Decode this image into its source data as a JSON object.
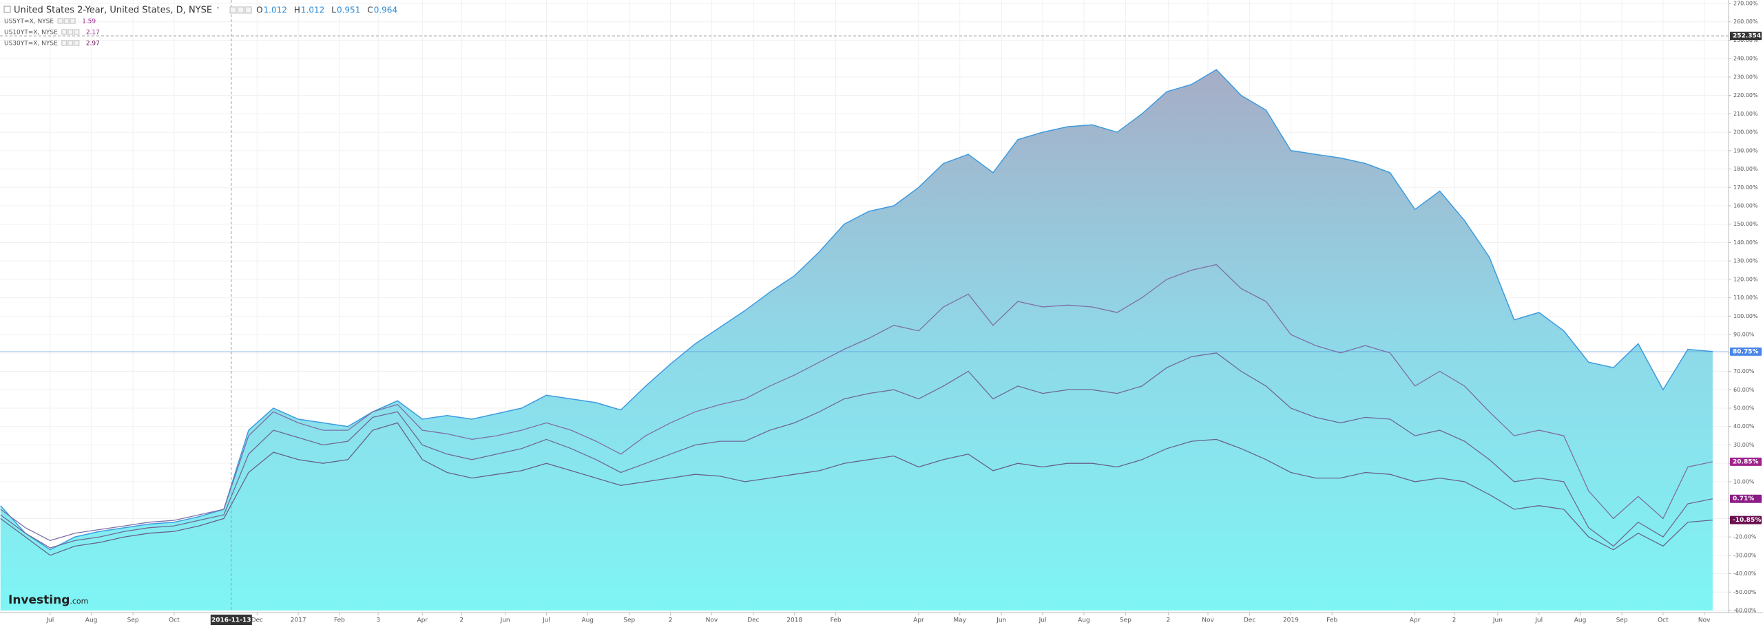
{
  "chart_data": {
    "type": "line-area",
    "title": "United States 2-Year, United States, D, NYSE",
    "ohlc": [
      {
        "key": "O",
        "value": 1.012
      },
      {
        "key": "H",
        "value": 1.012
      },
      {
        "key": "L",
        "value": 0.951
      },
      {
        "key": "C",
        "value": 0.964
      }
    ],
    "watermark": [
      "Investing",
      ".com"
    ],
    "x": [
      2016.4,
      2016.45,
      2016.5,
      2016.55,
      2016.6,
      2016.65,
      2016.7,
      2016.75,
      2016.8,
      2016.85,
      2016.9,
      2016.95,
      2017.0,
      2017.05,
      2017.1,
      2017.15,
      2017.2,
      2017.25,
      2017.3,
      2017.35,
      2017.4,
      2017.45,
      2017.5,
      2017.55,
      2017.6,
      2017.65,
      2017.7,
      2017.75,
      2017.8,
      2017.85,
      2017.9,
      2017.95,
      2018.0,
      2018.05,
      2018.1,
      2018.15,
      2018.2,
      2018.25,
      2018.3,
      2018.35,
      2018.4,
      2018.45,
      2018.5,
      2018.55,
      2018.6,
      2018.65,
      2018.7,
      2018.75,
      2018.8,
      2018.85,
      2018.9,
      2018.95,
      2019.0,
      2019.05,
      2019.1,
      2019.15,
      2019.2,
      2019.25,
      2019.3,
      2019.35,
      2019.4,
      2019.45,
      2019.5,
      2019.55,
      2019.6,
      2019.65,
      2019.7,
      2019.75,
      2019.8,
      2019.85
    ],
    "series": [
      {
        "name": "United States 2-Year, United States, D, NYSE",
        "color": "#3d9be0",
        "badge_color": "#4a86e8",
        "area": true,
        "last_label": "80.75%",
        "values": [
          -3,
          -18,
          -27,
          -20,
          -17,
          -15,
          -13,
          -12,
          -9,
          -5,
          38,
          50,
          44,
          42,
          40,
          48,
          54,
          44,
          46,
          44,
          47,
          50,
          57,
          55,
          53,
          49,
          62,
          74,
          85,
          94,
          103,
          113,
          122,
          135,
          150,
          157,
          160,
          170,
          183,
          188,
          178,
          196,
          200,
          203,
          204,
          200,
          210,
          222,
          226,
          234,
          220,
          212,
          190,
          188,
          186,
          183,
          178,
          158,
          168,
          152,
          132,
          98,
          102,
          92,
          75,
          72,
          85,
          60,
          82,
          80.75
        ]
      },
      {
        "name": "US5YT=X, NYSE",
        "price": 1.59,
        "color": "#7d6fa6",
        "badge_color": "#a0238f",
        "last_label": "20.85%",
        "values": [
          -5,
          -15,
          -22,
          -18,
          -16,
          -14,
          -12,
          -11,
          -8,
          -5,
          35,
          48,
          42,
          38,
          38,
          48,
          52,
          38,
          36,
          33,
          35,
          38,
          42,
          38,
          32,
          25,
          35,
          42,
          48,
          52,
          55,
          62,
          68,
          75,
          82,
          88,
          95,
          92,
          105,
          112,
          95,
          108,
          105,
          106,
          105,
          102,
          110,
          120,
          125,
          128,
          115,
          108,
          90,
          84,
          80,
          84,
          80,
          62,
          70,
          62,
          48,
          35,
          38,
          35,
          5,
          -10,
          2,
          -10,
          18,
          20.85
        ]
      },
      {
        "name": "US10YT=X, NYSE",
        "price": 2.17,
        "color": "#6f6898",
        "badge_color": "#8c1c85",
        "last_label": "0.71%",
        "values": [
          -8,
          -18,
          -26,
          -22,
          -20,
          -17,
          -15,
          -14,
          -11,
          -8,
          25,
          38,
          34,
          30,
          32,
          45,
          48,
          30,
          25,
          22,
          25,
          28,
          33,
          28,
          22,
          15,
          20,
          25,
          30,
          32,
          32,
          38,
          42,
          48,
          55,
          58,
          60,
          55,
          62,
          70,
          55,
          62,
          58,
          60,
          60,
          58,
          62,
          72,
          78,
          80,
          70,
          62,
          50,
          45,
          42,
          45,
          44,
          35,
          38,
          32,
          22,
          10,
          12,
          10,
          -15,
          -25,
          -12,
          -20,
          -2,
          0.71
        ]
      },
      {
        "name": "US30YT=X, NYSE",
        "price": 2.97,
        "color": "#66628a",
        "badge_color": "#6a0f4e",
        "last_label": "-10.85%",
        "values": [
          -10,
          -20,
          -30,
          -25,
          -23,
          -20,
          -18,
          -17,
          -14,
          -10,
          15,
          26,
          22,
          20,
          22,
          38,
          42,
          22,
          15,
          12,
          14,
          16,
          20,
          16,
          12,
          8,
          10,
          12,
          14,
          13,
          10,
          12,
          14,
          16,
          20,
          22,
          24,
          18,
          22,
          25,
          16,
          20,
          18,
          20,
          20,
          18,
          22,
          28,
          32,
          33,
          28,
          22,
          15,
          12,
          12,
          15,
          14,
          10,
          12,
          10,
          3,
          -5,
          -3,
          -5,
          -20,
          -27,
          -18,
          -25,
          -12,
          -10.85
        ]
      }
    ],
    "xlim": [
      2016.399,
      2019.882
    ],
    "xticks": [
      {
        "value": 2016.5,
        "label": "Jul"
      },
      {
        "value": 2016.583,
        "label": "Aug"
      },
      {
        "value": 2016.667,
        "label": "Sep"
      },
      {
        "value": 2016.75,
        "label": "Oct"
      },
      {
        "value": 2016.917,
        "label": "Dec"
      },
      2017,
      {
        "value": 2017.083,
        "label": "Feb"
      },
      {
        "value": 2017.161,
        "label": "3"
      },
      {
        "value": 2017.25,
        "label": "Apr"
      },
      {
        "value": 2017.329,
        "label": "2"
      },
      {
        "value": 2017.417,
        "label": "Jun"
      },
      {
        "value": 2017.5,
        "label": "Jul"
      },
      {
        "value": 2017.583,
        "label": "Aug"
      },
      {
        "value": 2017.667,
        "label": "Sep"
      },
      {
        "value": 2017.75,
        "label": "2"
      },
      {
        "value": 2017.833,
        "label": "Nov"
      },
      {
        "value": 2017.917,
        "label": "Dec"
      },
      2018,
      {
        "value": 2018.083,
        "label": "Feb"
      },
      {
        "value": 2018.25,
        "label": "Apr"
      },
      {
        "value": 2018.333,
        "label": "May"
      },
      {
        "value": 2018.417,
        "label": "Jun"
      },
      {
        "value": 2018.5,
        "label": "Jul"
      },
      {
        "value": 2018.583,
        "label": "Aug"
      },
      {
        "value": 2018.667,
        "label": "Sep"
      },
      {
        "value": 2018.753,
        "label": "2"
      },
      {
        "value": 2018.833,
        "label": "Nov"
      },
      {
        "value": 2018.917,
        "label": "Dec"
      },
      2019,
      {
        "value": 2019.083,
        "label": "Feb"
      },
      {
        "value": 2019.25,
        "label": "Apr"
      },
      {
        "value": 2019.329,
        "label": "2"
      },
      {
        "value": 2019.417,
        "label": "Jun"
      },
      {
        "value": 2019.5,
        "label": "Jul"
      },
      {
        "value": 2019.583,
        "label": "Aug"
      },
      {
        "value": 2019.667,
        "label": "Sep"
      },
      {
        "value": 2019.75,
        "label": "Oct"
      },
      {
        "value": 2019.833,
        "label": "Nov"
      }
    ],
    "ylim": [
      -60,
      270
    ],
    "yticks": [
      {
        "value": -60,
        "label": "-60.00%"
      },
      {
        "value": -50,
        "label": "-50.00%"
      },
      {
        "value": -40,
        "label": "-40.00%"
      },
      {
        "value": -30,
        "label": "-30.00%"
      },
      {
        "value": -20,
        "label": "-20.00%"
      },
      {
        "value": -10,
        "label": "-10.00%"
      },
      {
        "value": 0,
        "label": "0.00%"
      },
      {
        "value": 10,
        "label": "10.00%"
      },
      {
        "value": 20,
        "label": "20.00%"
      },
      {
        "value": 30,
        "label": "30.00%"
      },
      {
        "value": 40,
        "label": "40.00%"
      },
      {
        "value": 50,
        "label": "50.00%"
      },
      {
        "value": 60,
        "label": "60.00%"
      },
      {
        "value": 70,
        "label": "70.00%"
      },
      {
        "value": 80,
        "label": "80.00%"
      },
      {
        "value": 90,
        "label": "90.00%"
      },
      {
        "value": 100,
        "label": "100.00%"
      },
      {
        "value": 110,
        "label": "110.00%"
      },
      {
        "value": 120,
        "label": "120.00%"
      },
      {
        "value": 130,
        "label": "130.00%"
      },
      {
        "value": 140,
        "label": "140.00%"
      },
      {
        "value": 150,
        "label": "150.00%"
      },
      {
        "value": 160,
        "label": "160.00%"
      },
      {
        "value": 170,
        "label": "170.00%"
      },
      {
        "value": 180,
        "label": "180.00%"
      },
      {
        "value": 190,
        "label": "190.00%"
      },
      {
        "value": 200,
        "label": "200.00%"
      },
      {
        "value": 210,
        "label": "210.00%"
      },
      {
        "value": 220,
        "label": "220.00%"
      },
      {
        "value": 230,
        "label": "230.00%"
      },
      {
        "value": 240,
        "label": "240.00%"
      },
      {
        "value": 250,
        "label": "250.00%"
      },
      {
        "value": 260,
        "label": "260.00%"
      },
      {
        "value": 270,
        "label": "270.00%"
      }
    ],
    "grid": true,
    "crosshair_y": 252.354,
    "crosshair_x": {
      "value": 2016.865,
      "label": "2016-11-13"
    }
  }
}
